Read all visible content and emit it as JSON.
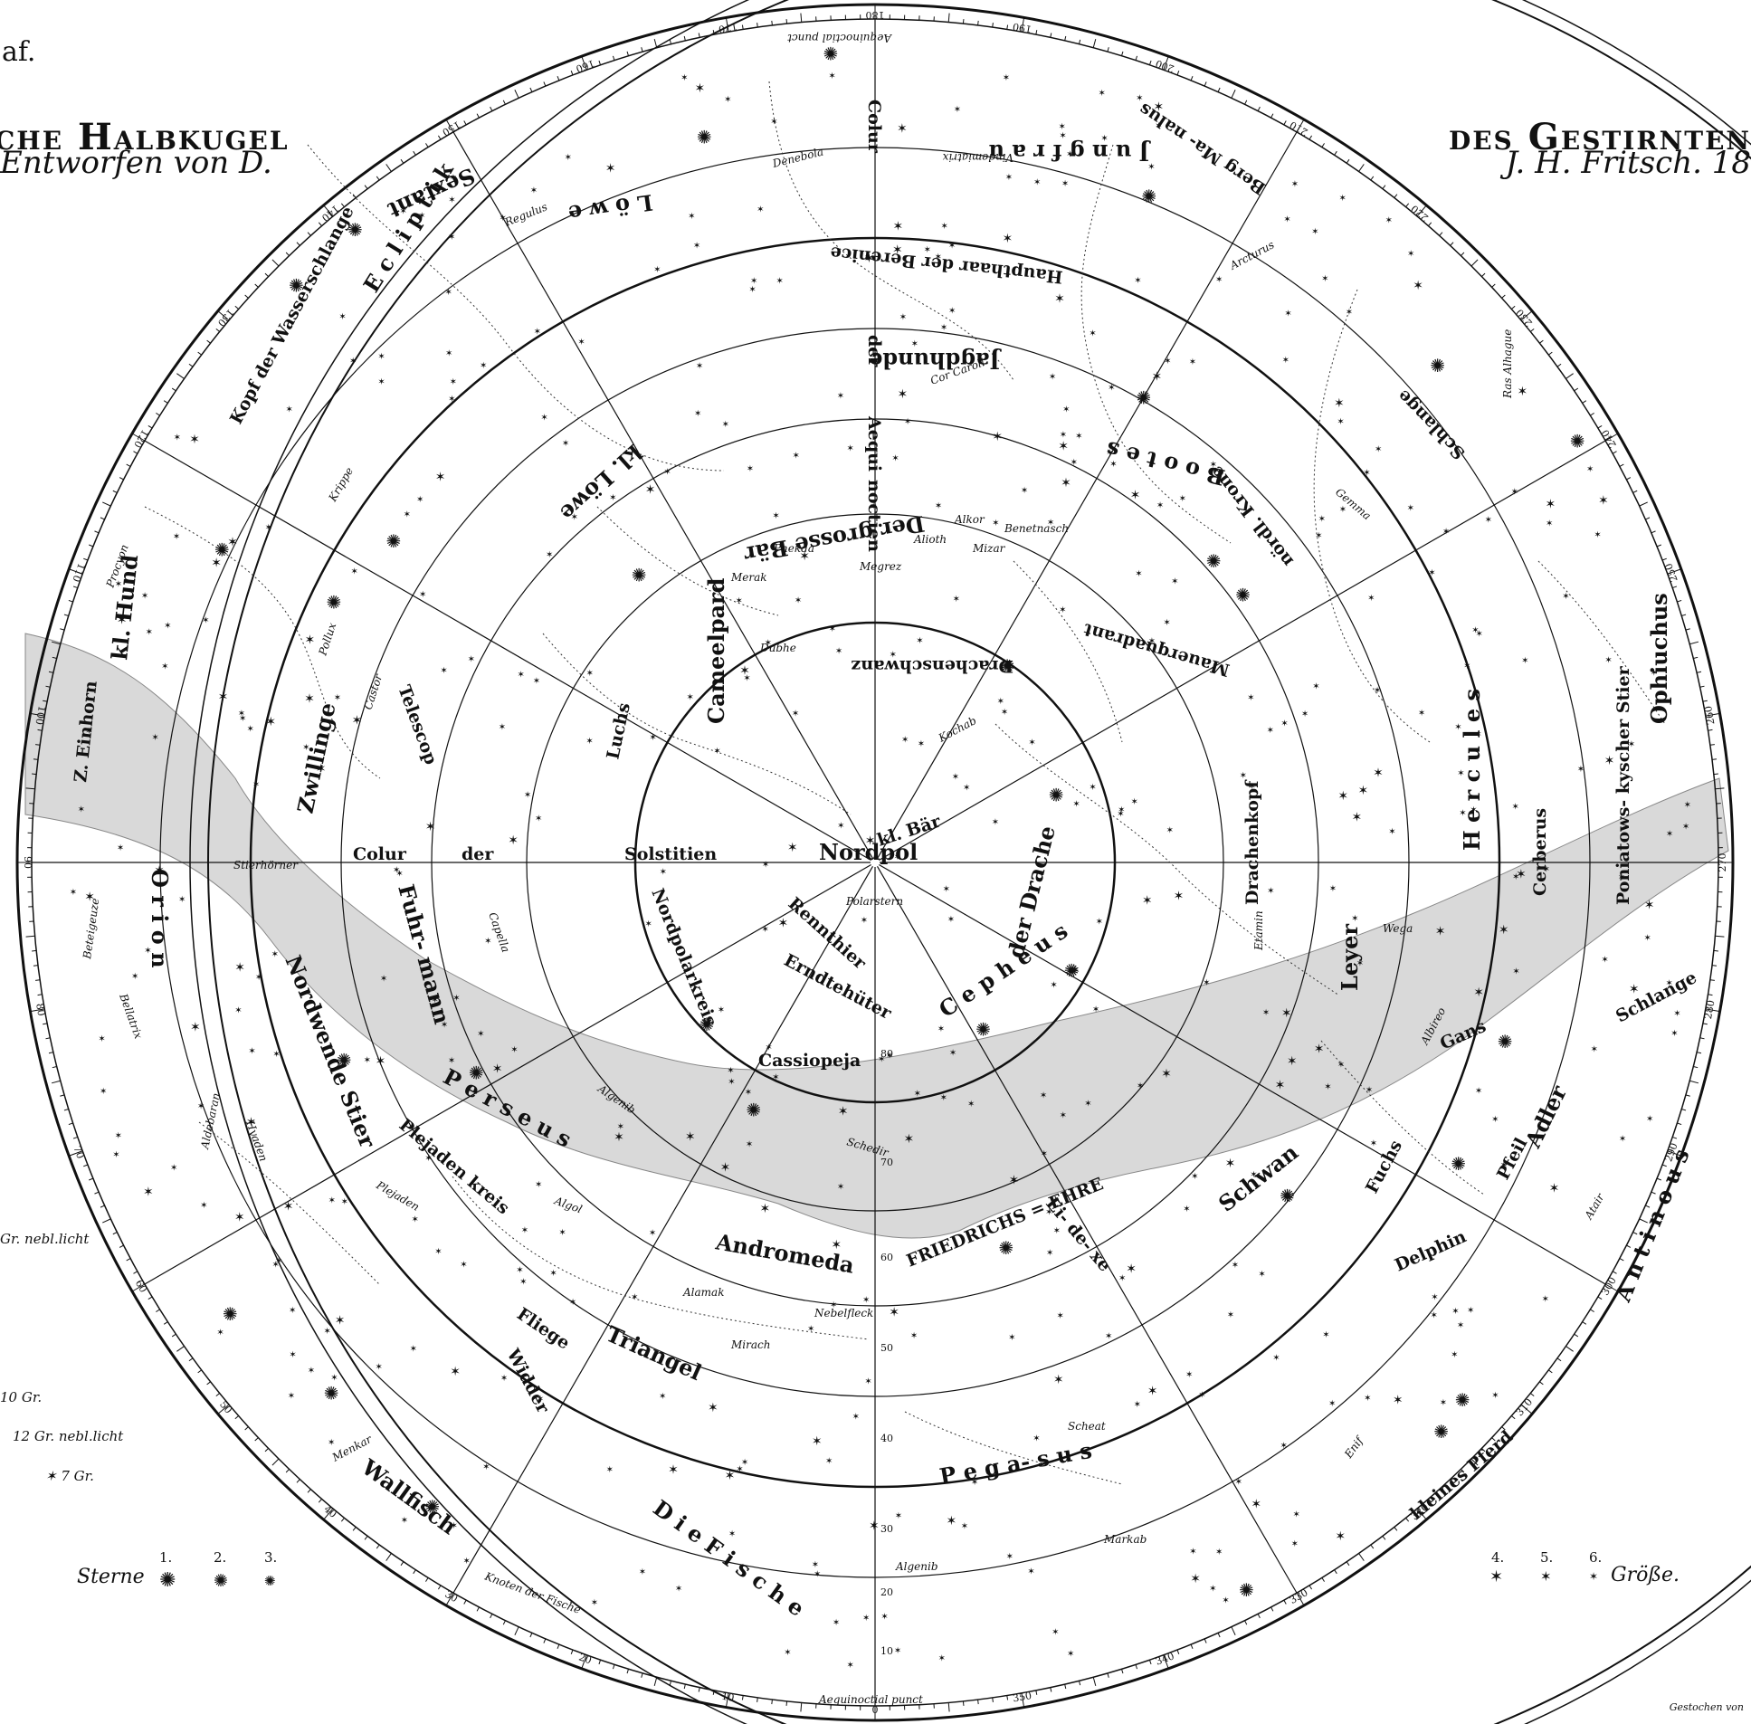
{
  "plate": "af.",
  "title_left": "che Halbkugel",
  "title_right": "des Gestirnten",
  "subtitle_left": "Entworfen von D.",
  "subtitle_right": "J. H. Fritsch. 18",
  "legend": {
    "nebula": "Gr. nebl.licht",
    "g10": "10 Gr.",
    "g12": "12 Gr. nebl.licht",
    "g7": "7 Gr.",
    "stars_word": "Sterne",
    "mag_left": [
      "1.",
      "2.",
      "3."
    ],
    "mag_right": [
      "4.",
      "5.",
      "6."
    ],
    "groesse": "Größe.",
    "engraver": "Gestochen von"
  },
  "lines": {
    "solstitial": [
      "Colur",
      "der",
      "Solstitien"
    ],
    "pole": "Nordpol",
    "equinox": [
      "Colur",
      "der",
      "Aequi",
      "noctien"
    ],
    "ecliptic": "E c l i p t i k",
    "polar_circle": "Nordpolarkreis",
    "tropic": "Nordwende Stier",
    "pleiades_circle": "Plejaden kreis",
    "vernal_point": "Aequinoctial punct",
    "autumnal_point": "Aequinoctial punct",
    "node": "Knoten der Fische"
  },
  "constellations": [
    {
      "id": "jungfrau",
      "label": "J u n g f r a u"
    },
    {
      "id": "loewe",
      "label": "L ö w e"
    },
    {
      "id": "sextant",
      "label": "Sextant"
    },
    {
      "id": "haupthaar",
      "label": "Haupthaar der Berenice"
    },
    {
      "id": "jagdhunde",
      "label": "Jagdhunde"
    },
    {
      "id": "berg-manalus",
      "label": "Berg Ma- nalus"
    },
    {
      "id": "boote",
      "label": "B o o t e s"
    },
    {
      "id": "schlange",
      "label": "Schlange"
    },
    {
      "id": "kl-loewe",
      "label": "kl. Löwe"
    },
    {
      "id": "grosse-bar",
      "label": "Der grosse Bär"
    },
    {
      "id": "wasserschlange",
      "label": "Kopf der Wasserschlange"
    },
    {
      "id": "nordl-krone",
      "label": "nördl. Krone"
    },
    {
      "id": "drachenschwanz",
      "label": "Drachenschwanz"
    },
    {
      "id": "mauerquadrant",
      "label": "Mauerquadrant"
    },
    {
      "id": "herkules",
      "label": "H e r c u l e s"
    },
    {
      "id": "ophiuchus",
      "label": "Ophiuchus"
    },
    {
      "id": "kl-hund",
      "label": "kl. Hund"
    },
    {
      "id": "einhorn",
      "label": "Z. Einhorn"
    },
    {
      "id": "zwillinge",
      "label": "Zwillinge"
    },
    {
      "id": "telescop",
      "label": "Telescop"
    },
    {
      "id": "luchs",
      "label": "Luchs"
    },
    {
      "id": "cameelpard",
      "label": "Cameelpard"
    },
    {
      "id": "kl-bar",
      "label": "kl. Bär"
    },
    {
      "id": "drache",
      "label": "der Drache"
    },
    {
      "id": "drachenkopf",
      "label": "Drachenkopf"
    },
    {
      "id": "cerberus",
      "label": "Cerberus"
    },
    {
      "id": "poniatowski",
      "label": "Poniatows- kyscher Stier"
    },
    {
      "id": "orion",
      "label": "O r i o n"
    },
    {
      "id": "fuhrmann",
      "label": "Fuhr- mann"
    },
    {
      "id": "rennthier",
      "label": "Rennthier"
    },
    {
      "id": "erndtehueter",
      "label": "Erndtehüter"
    },
    {
      "id": "cepheus",
      "label": "C e p h e u s"
    },
    {
      "id": "leyer",
      "label": "Leyer"
    },
    {
      "id": "gans",
      "label": "Gans"
    },
    {
      "id": "schlangenkopf",
      "label": "Schlange"
    },
    {
      "id": "cassiopeja",
      "label": "Cassiopeja"
    },
    {
      "id": "perseus",
      "label": "P e r s e u s"
    },
    {
      "id": "schwan",
      "label": "Schwan"
    },
    {
      "id": "fuchs",
      "label": "Fuchs"
    },
    {
      "id": "pfeil",
      "label": "Pfeil"
    },
    {
      "id": "adler",
      "label": "Adler"
    },
    {
      "id": "andromeda",
      "label": "Andromeda"
    },
    {
      "id": "friedrichs-ehre",
      "label": "FRIEDRICHS = EHRE"
    },
    {
      "id": "eidechse",
      "label": "Ei- de- xe"
    },
    {
      "id": "delphin",
      "label": "Delphin"
    },
    {
      "id": "antinous",
      "label": "A n t i n o u s"
    },
    {
      "id": "fliege",
      "label": "Fliege"
    },
    {
      "id": "triangel",
      "label": "Triangel"
    },
    {
      "id": "widder",
      "label": "Widder"
    },
    {
      "id": "pegasus",
      "label": "P e g a- s u s"
    },
    {
      "id": "kl-pferd",
      "label": "kleines Pferd"
    },
    {
      "id": "wallfisch",
      "label": "Wallfisch"
    },
    {
      "id": "fische",
      "label": "D i e F i s c h e"
    }
  ],
  "stars": [
    {
      "id": "regulus",
      "label": "Regulus"
    },
    {
      "id": "denebola",
      "label": "Denebola"
    },
    {
      "id": "vindemiatrix",
      "label": "Vindemiatrix"
    },
    {
      "id": "arcturus",
      "label": "Arcturus"
    },
    {
      "id": "cor-caroli",
      "label": "Cor Caroli"
    },
    {
      "id": "alkor",
      "label": "Alkor"
    },
    {
      "id": "mizar",
      "label": "Mizar"
    },
    {
      "id": "alioth",
      "label": "Alioth"
    },
    {
      "id": "phekda",
      "label": "Phekda"
    },
    {
      "id": "megrez",
      "label": "Megrez"
    },
    {
      "id": "merak",
      "label": "Merak"
    },
    {
      "id": "dubhe",
      "label": "Dubhe"
    },
    {
      "id": "benetnasch",
      "label": "Benetnasch"
    },
    {
      "id": "kochab",
      "label": "Kochab"
    },
    {
      "id": "gemma",
      "label": "Gemma"
    },
    {
      "id": "procyon",
      "label": "Procyon"
    },
    {
      "id": "castor",
      "label": "Castor"
    },
    {
      "id": "pollux",
      "label": "Pollux"
    },
    {
      "id": "krippe",
      "label": "Krippe"
    },
    {
      "id": "polarstern",
      "label": "Polarstern"
    },
    {
      "id": "etamin",
      "label": "Etamin"
    },
    {
      "id": "wega",
      "label": "Wega"
    },
    {
      "id": "capella",
      "label": "Capella"
    },
    {
      "id": "beteigeuze",
      "label": "Beteigeuze"
    },
    {
      "id": "bellatrix",
      "label": "Bellatrix"
    },
    {
      "id": "stierhoerner",
      "label": "Stierhörner"
    },
    {
      "id": "algenib-p",
      "label": "Algenib"
    },
    {
      "id": "algol",
      "label": "Algol"
    },
    {
      "id": "schedir",
      "label": "Schedir"
    },
    {
      "id": "aldebaran",
      "label": "Aldebaran"
    },
    {
      "id": "hyaden",
      "label": "Hyaden"
    },
    {
      "id": "plejaden",
      "label": "Plejaden"
    },
    {
      "id": "alamak",
      "label": "Alamak"
    },
    {
      "id": "mirach",
      "label": "Mirach"
    },
    {
      "id": "nebelfleck",
      "label": "Nebelfleck"
    },
    {
      "id": "scheat",
      "label": "Scheat"
    },
    {
      "id": "markab",
      "label": "Markab"
    },
    {
      "id": "algenib",
      "label": "Algenib"
    },
    {
      "id": "enif",
      "label": "Enif"
    },
    {
      "id": "atair",
      "label": "Atair"
    },
    {
      "id": "albireo",
      "label": "Albireo"
    },
    {
      "id": "menkar",
      "label": "Menkar"
    },
    {
      "id": "ras-alhague",
      "label": "Ras Alhague"
    }
  ],
  "rim_ticks": [
    "180",
    "170",
    "190",
    "160",
    "200",
    "150",
    "210",
    "140",
    "220",
    "130",
    "230",
    "120",
    "240",
    "110",
    "250",
    "100",
    "260",
    "90",
    "270",
    "80",
    "280",
    "70",
    "290",
    "60",
    "300",
    "50",
    "310",
    "40",
    "320",
    "30",
    "330",
    "20",
    "340",
    "10",
    "350",
    "0"
  ],
  "dec_ticks": [
    "80",
    "70",
    "60",
    "50",
    "40",
    "30",
    "20",
    "10"
  ],
  "colors": {
    "ink": "#111111",
    "milkyway": "#d9d9d9",
    "paper": "#ffffff"
  }
}
